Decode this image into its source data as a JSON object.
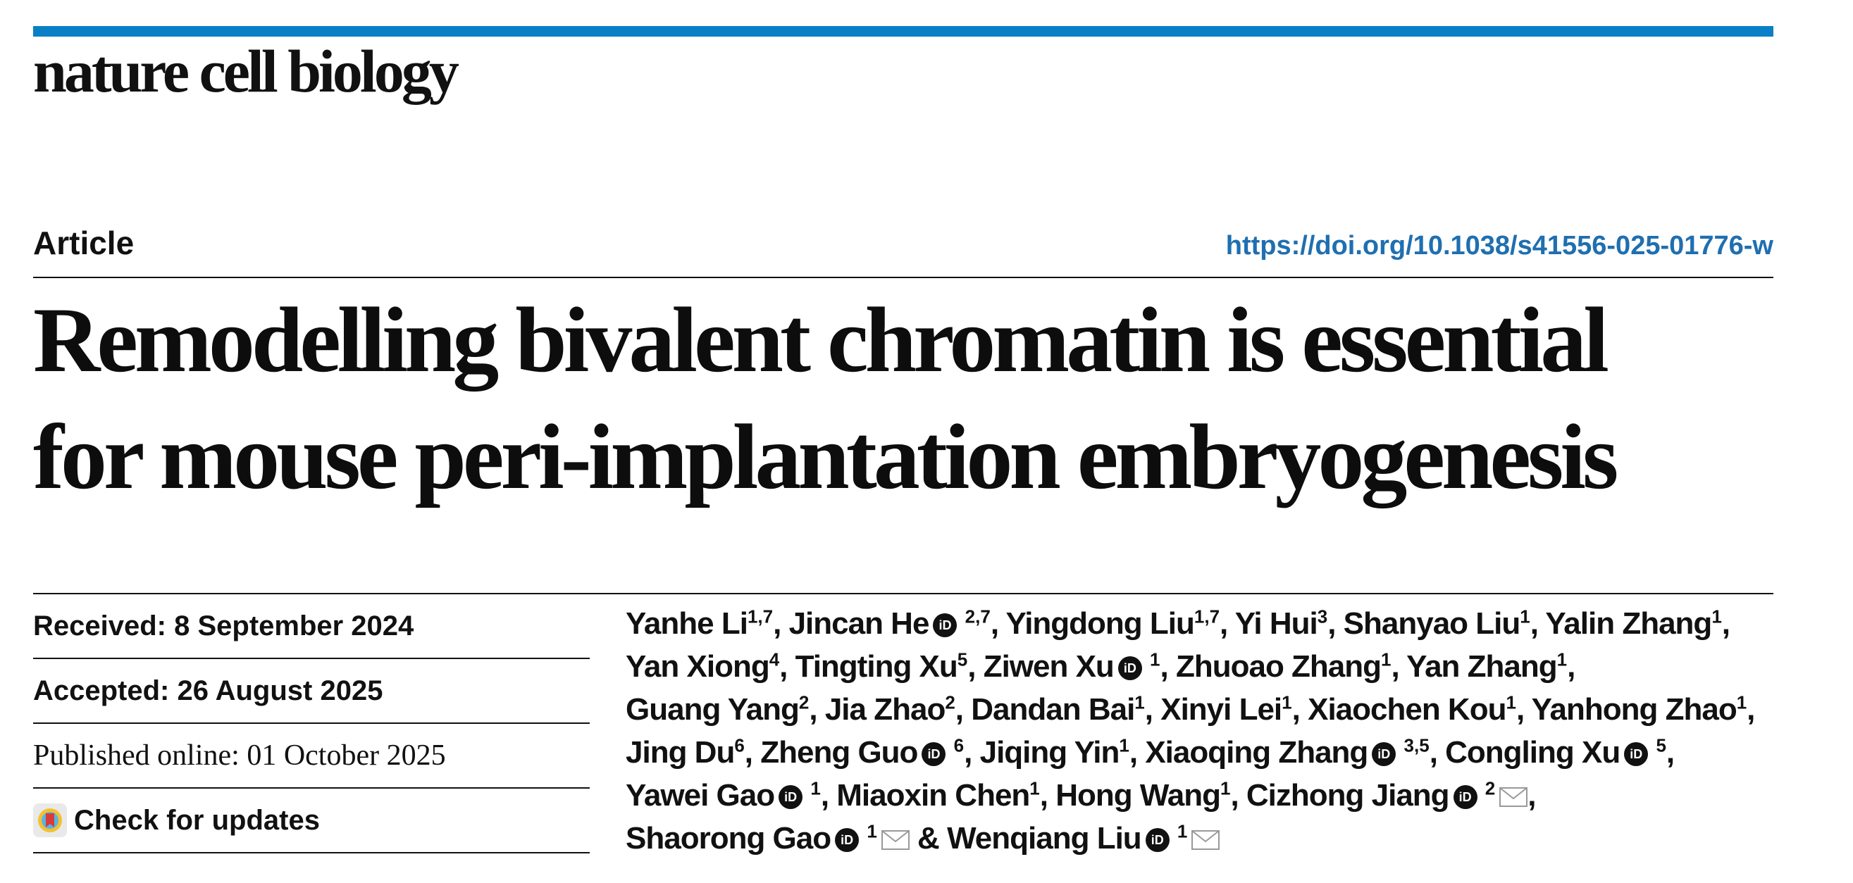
{
  "colors": {
    "accent_bar": "#0a7fc6",
    "doi_link": "#1f6fb0"
  },
  "journal_name": "nature cell biology",
  "article_type": "Article",
  "doi": "https://doi.org/10.1038/s41556-025-01776-w",
  "title": {
    "line1": "Remodelling bivalent chromatin is essential",
    "line2": "for mouse peri-implantation embryogenesis"
  },
  "dates": {
    "received": "Received: 8 September 2024",
    "accepted": "Accepted: 26 August 2025",
    "published": "Published online: 01 October 2025",
    "check_updates": "Check for updates"
  },
  "authors": {
    "a1": {
      "name": "Yanhe Li",
      "aff": "1,7"
    },
    "a2": {
      "name": "Jincan He",
      "aff": "2,7"
    },
    "a3": {
      "name": "Yingdong Liu",
      "aff": "1,7"
    },
    "a4": {
      "name": "Yi Hui",
      "aff": "3"
    },
    "a5": {
      "name": "Shanyao Liu",
      "aff": "1"
    },
    "a6": {
      "name": "Yalin Zhang",
      "aff": "1"
    },
    "a7": {
      "name": "Yan Xiong",
      "aff": "4"
    },
    "a8": {
      "name": "Tingting Xu",
      "aff": "5"
    },
    "a9": {
      "name": "Ziwen Xu",
      "aff": "1"
    },
    "a10": {
      "name": "Zhuoao Zhang",
      "aff": "1"
    },
    "a11": {
      "name": "Yan Zhang",
      "aff": "1"
    },
    "a12": {
      "name": "Guang Yang",
      "aff": "2"
    },
    "a13": {
      "name": "Jia Zhao",
      "aff": "2"
    },
    "a14": {
      "name": "Dandan Bai",
      "aff": "1"
    },
    "a15": {
      "name": "Xinyi Lei",
      "aff": "1"
    },
    "a16": {
      "name": "Xiaochen Kou",
      "aff": "1"
    },
    "a17": {
      "name": "Yanhong Zhao",
      "aff": "1"
    },
    "a18": {
      "name": "Jing Du",
      "aff": "6"
    },
    "a19": {
      "name": "Zheng Guo",
      "aff": "6"
    },
    "a20": {
      "name": "Jiqing Yin",
      "aff": "1"
    },
    "a21": {
      "name": "Xiaoqing Zhang",
      "aff": "3,5"
    },
    "a22": {
      "name": "Congling Xu",
      "aff": "5"
    },
    "a23": {
      "name": "Yawei Gao",
      "aff": "1"
    },
    "a24": {
      "name": "Miaoxin Chen",
      "aff": "1"
    },
    "a25": {
      "name": "Hong Wang",
      "aff": "1"
    },
    "a26": {
      "name": "Cizhong Jiang",
      "aff": "2"
    },
    "a27": {
      "name": "Shaorong Gao",
      "aff": "1"
    },
    "a28": {
      "name": "Wenqiang Liu",
      "aff": "1"
    }
  },
  "orcid_label": "iD",
  "icons": {
    "orcid": "orcid-icon",
    "mail": "envelope-icon",
    "updates": "check-updates-icon"
  }
}
